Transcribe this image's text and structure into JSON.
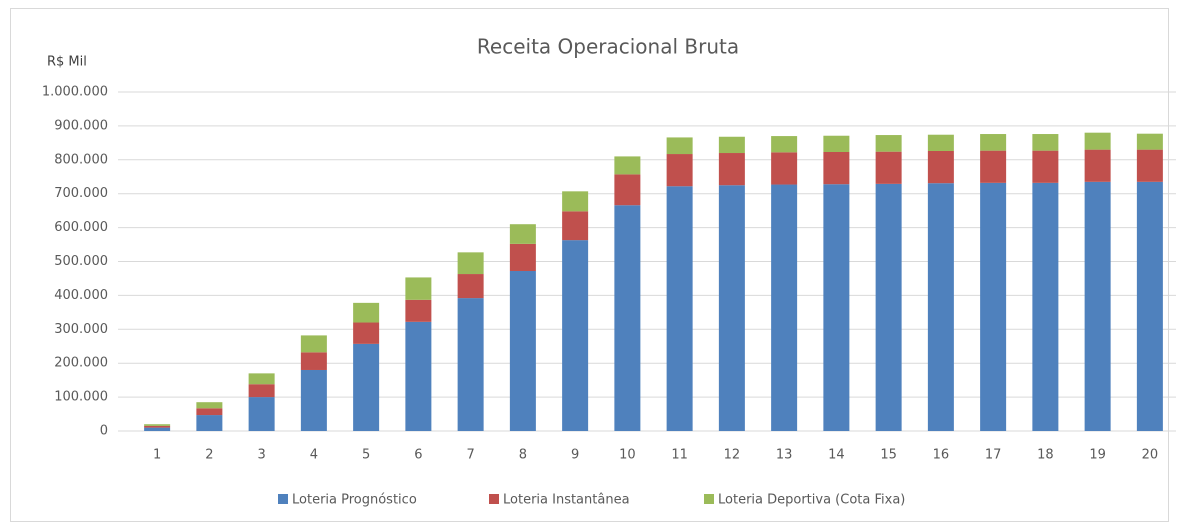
{
  "chart_data": {
    "type": "stacked_bar",
    "title": "Receita Operacional Bruta",
    "y_label": "R$ Mil",
    "categories": [
      "1",
      "2",
      "3",
      "4",
      "5",
      "6",
      "7",
      "8",
      "9",
      "10",
      "11",
      "12",
      "13",
      "14",
      "15",
      "16",
      "17",
      "18",
      "19",
      "20"
    ],
    "series": [
      {
        "name": "Loteria Prognóstico",
        "color": "#4f81bd",
        "values": [
          10000,
          47000,
          100000,
          180000,
          257000,
          322000,
          392000,
          472000,
          563000,
          666000,
          722000,
          725000,
          727000,
          728000,
          729000,
          731000,
          732000,
          732000,
          735000,
          735000
        ]
      },
      {
        "name": "Loteria Instantânea",
        "color": "#c0504d",
        "values": [
          5000,
          20000,
          38000,
          52000,
          63000,
          65000,
          71000,
          80000,
          85000,
          91000,
          95000,
          95000,
          95000,
          95000,
          95000,
          95000,
          95000,
          95000,
          95000,
          95000
        ]
      },
      {
        "name": "Loteria Deportiva (Cota Fixa)",
        "color": "#9bbb59",
        "values": [
          5000,
          18000,
          32000,
          50000,
          58000,
          66000,
          64000,
          58000,
          59000,
          53000,
          49000,
          48000,
          48000,
          48000,
          49000,
          48000,
          49000,
          49000,
          50000,
          47000
        ]
      }
    ],
    "ylim": [
      0,
      1000000
    ],
    "yticks": [
      0,
      {
        "value": 100000,
        "label": "100.000"
      },
      {
        "value": 200000,
        "label": "200.000"
      },
      {
        "value": 300000,
        "label": "300.000"
      },
      {
        "value": 400000,
        "label": "400.000"
      },
      {
        "value": 500000,
        "label": "500.000"
      },
      {
        "value": 600000,
        "label": "600.000"
      },
      {
        "value": 700000,
        "label": "700.000"
      },
      {
        "value": 800000,
        "label": "800.000"
      },
      {
        "value": 900000,
        "label": "900.000"
      },
      {
        "value": 1000000,
        "label": "1.000.000"
      }
    ],
    "grid": true,
    "legend": "bottom"
  }
}
